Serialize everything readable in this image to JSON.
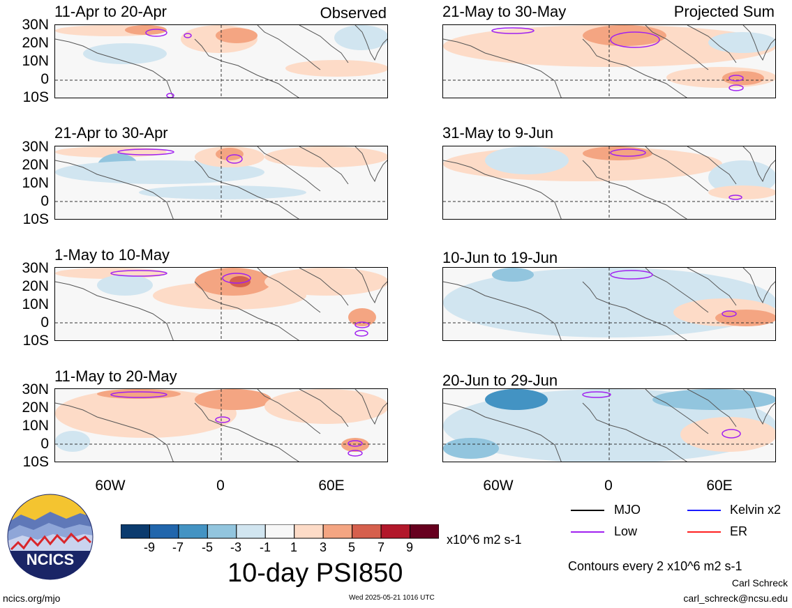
{
  "tags": {
    "observed": "Observed",
    "projected": "Projected Sum"
  },
  "latitude_labels": [
    "30N",
    "20N",
    "10N",
    "0",
    "10S"
  ],
  "longitude_labels": [
    "60W",
    "0",
    "60E"
  ],
  "panels": [
    {
      "id": "obs-1",
      "title": "11-Apr to 20-Apr"
    },
    {
      "id": "obs-2",
      "title": "21-Apr to 30-Apr"
    },
    {
      "id": "obs-3",
      "title": "1-May to 10-May"
    },
    {
      "id": "obs-4",
      "title": "11-May to 20-May"
    },
    {
      "id": "proj-1",
      "title": "21-May to 30-May"
    },
    {
      "id": "proj-2",
      "title": "31-May to 9-Jun"
    },
    {
      "id": "proj-3",
      "title": "10-Jun to 19-Jun"
    },
    {
      "id": "proj-4",
      "title": "20-Jun to 29-Jun"
    }
  ],
  "legend": {
    "mjo": "MJO",
    "kelvin": "Kelvin x2",
    "low": "Low",
    "er": "ER",
    "colors": {
      "mjo": "#000000",
      "kelvin": "#1a1aff",
      "low": "#a020f0",
      "er": "#ff2020"
    }
  },
  "colorbar": {
    "ticks": [
      "-9",
      "-7",
      "-5",
      "-3",
      "-1",
      "1",
      "3",
      "5",
      "7",
      "9"
    ],
    "unit": "x10^6 m2 s-1",
    "colors": [
      "#0b3b6e",
      "#2166ac",
      "#4393c3",
      "#92c5de",
      "#d1e5f0",
      "#f7f7f7",
      "#fddbc7",
      "#f4a582",
      "#d6604d",
      "#b2182b",
      "#67001f"
    ]
  },
  "title": "10-day PSI850",
  "contour_note": "Contours every 2 x10^6 m2 s-1",
  "author": "Carl Schreck",
  "email": "carl_schreck@ncsu.edu",
  "site": "ncics.org/mjo",
  "timestamp": "Wed 2025-05-21 1016 UTC",
  "logo_text": "NCICS"
}
